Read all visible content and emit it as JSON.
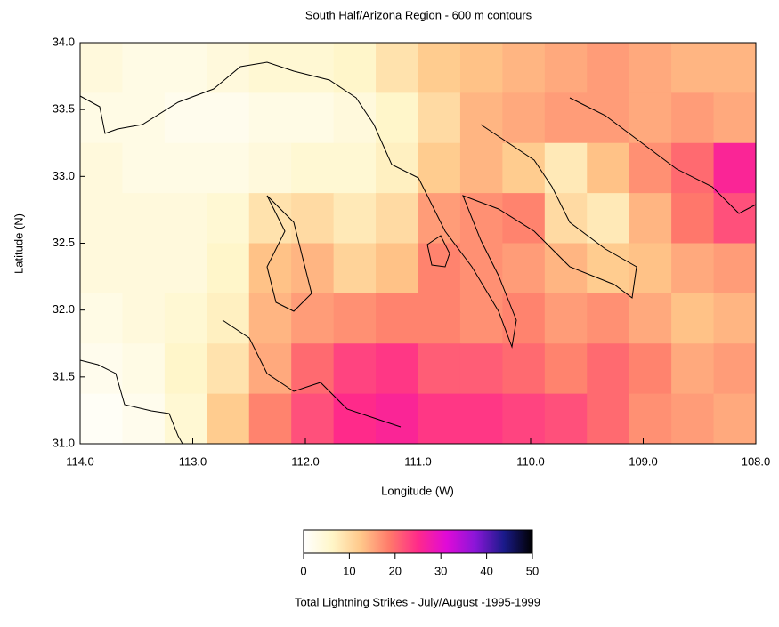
{
  "chart_data": {
    "type": "heatmap",
    "title": "South Half/Arizona Region - 600 m contours",
    "x_label": "Longitude (W)",
    "y_label": "Latitude (N)",
    "xlim": [
      114,
      108
    ],
    "ylim": [
      31,
      34
    ],
    "xticks": [
      {
        "value": 114,
        "label": "114.0"
      },
      {
        "value": 113,
        "label": "113.0"
      },
      {
        "value": 112,
        "label": "112.0"
      },
      {
        "value": 111,
        "label": "111.0"
      },
      {
        "value": 110,
        "label": "110.0"
      },
      {
        "value": 109,
        "label": "109.0"
      },
      {
        "value": 108,
        "label": "108.0"
      }
    ],
    "yticks": [
      {
        "value": 31,
        "label": "31.0"
      },
      31.5,
      {
        "value": 32,
        "label": "32.0"
      },
      32.5,
      {
        "value": 33,
        "label": "33.0"
      },
      33.5,
      {
        "value": 34,
        "label": "34.0"
      }
    ],
    "z": [
      [
        4,
        3,
        3,
        4,
        5,
        5,
        6,
        9,
        12,
        13,
        14,
        15,
        16,
        15,
        14,
        14
      ],
      [
        3,
        3,
        2,
        2,
        3,
        3,
        4,
        6,
        10,
        14,
        15,
        16,
        16,
        15,
        16,
        15
      ],
      [
        4,
        3,
        3,
        3,
        4,
        5,
        5,
        7,
        12,
        14,
        12,
        8,
        13,
        17,
        20,
        26
      ],
      [
        4,
        4,
        4,
        5,
        9,
        10,
        8,
        10,
        16,
        17,
        18,
        10,
        8,
        14,
        19,
        22
      ],
      [
        4,
        4,
        4,
        6,
        13,
        14,
        11,
        13,
        18,
        17,
        16,
        14,
        12,
        13,
        15,
        16
      ],
      [
        3,
        4,
        5,
        7,
        14,
        16,
        17,
        18,
        18,
        17,
        18,
        16,
        17,
        15,
        13,
        14
      ],
      [
        2,
        3,
        6,
        9,
        15,
        20,
        23,
        24,
        21,
        21,
        20,
        18,
        20,
        18,
        15,
        16
      ],
      [
        1,
        2,
        5,
        12,
        18,
        22,
        25,
        26,
        24,
        24,
        23,
        22,
        20,
        17,
        16,
        15
      ]
    ],
    "colorbar_label": "Total Lightning Strikes - July/August -1995-1999",
    "clim": [
      0,
      50
    ],
    "cticks": [
      0,
      10,
      20,
      30,
      40,
      50
    ],
    "colorscale": [
      "#ffffff",
      "#fff6c8",
      "#ffc88a",
      "#ff7a6a",
      "#ff2a8a",
      "#e00ad8",
      "#8a16d8",
      "#1a1a8a",
      "#000000"
    ]
  }
}
